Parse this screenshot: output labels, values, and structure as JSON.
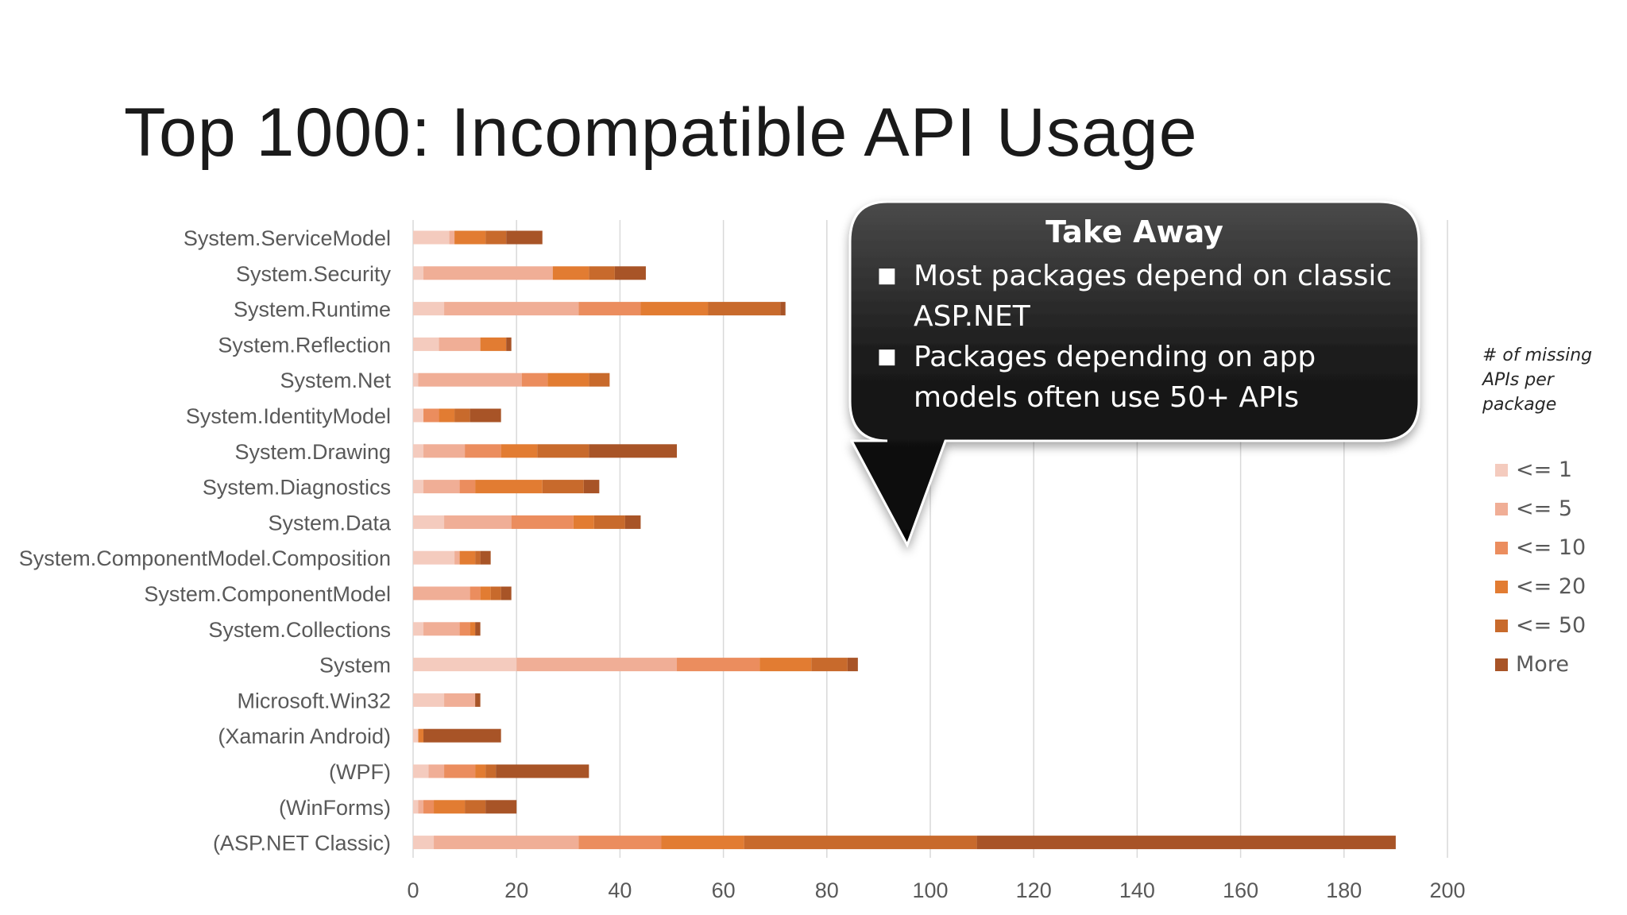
{
  "slide": {
    "title": "Top 1000: Incompatible API Usage"
  },
  "callout": {
    "heading": "Take Away",
    "bullets": [
      "Most packages depend on classic ASP.NET",
      "Packages depending on app models often use 50+ APIs"
    ]
  },
  "legend": {
    "title": "# of missing APIs per package",
    "colors": [
      "#f4cbbe",
      "#f0ae96",
      "#eb8d5e",
      "#e27c32",
      "#c86a2c",
      "#a85427"
    ]
  },
  "chart_data": {
    "type": "bar",
    "orientation": "horizontal",
    "stacked": true,
    "title": "Top 1000: Incompatible API Usage",
    "xlabel": "",
    "ylabel": "",
    "xlim": [
      0,
      200
    ],
    "x_ticks": [
      "0",
      "20",
      "40",
      "60",
      "80",
      "100",
      "120",
      "140",
      "160",
      "180",
      "200"
    ],
    "gridlines": "vertical",
    "legend_position": "right",
    "legend_title": "# of missing APIs per package",
    "categories": [
      "System.ServiceModel",
      "System.Security",
      "System.Runtime",
      "System.Reflection",
      "System.Net",
      "System.IdentityModel",
      "System.Drawing",
      "System.Diagnostics",
      "System.Data",
      "System.ComponentModel.Composition",
      "System.ComponentModel",
      "System.Collections",
      "System",
      "Microsoft.Win32",
      "(Xamarin Android)",
      "(WPF)",
      "(WinForms)",
      "(ASP.NET Classic)"
    ],
    "series": [
      {
        "name": "<= 1",
        "color": "#f4cbbe",
        "values": [
          7,
          2,
          6,
          5,
          1,
          2,
          2,
          2,
          6,
          8,
          0,
          2,
          20,
          6,
          1,
          3,
          1,
          4
        ]
      },
      {
        "name": "<= 5",
        "color": "#f0ae96",
        "values": [
          1,
          25,
          26,
          8,
          20,
          0,
          8,
          7,
          13,
          1,
          11,
          7,
          31,
          6,
          0,
          3,
          1,
          28
        ]
      },
      {
        "name": "<= 10",
        "color": "#eb8d5e",
        "values": [
          0,
          0,
          12,
          0,
          5,
          3,
          7,
          3,
          12,
          0,
          2,
          2,
          16,
          0,
          0,
          6,
          2,
          16
        ]
      },
      {
        "name": "<= 20",
        "color": "#e27c32",
        "values": [
          6,
          7,
          13,
          5,
          8,
          3,
          7,
          13,
          4,
          3,
          2,
          1,
          10,
          0,
          1,
          2,
          6,
          16
        ]
      },
      {
        "name": "<= 50",
        "color": "#c86a2c",
        "values": [
          4,
          5,
          14,
          0,
          4,
          3,
          10,
          8,
          6,
          1,
          2,
          0,
          7,
          0,
          0,
          2,
          4,
          45
        ]
      },
      {
        "name": "More",
        "color": "#a85427",
        "values": [
          7,
          6,
          1,
          1,
          0,
          6,
          17,
          3,
          3,
          2,
          2,
          1,
          2,
          1,
          15,
          18,
          6,
          81
        ]
      }
    ]
  }
}
